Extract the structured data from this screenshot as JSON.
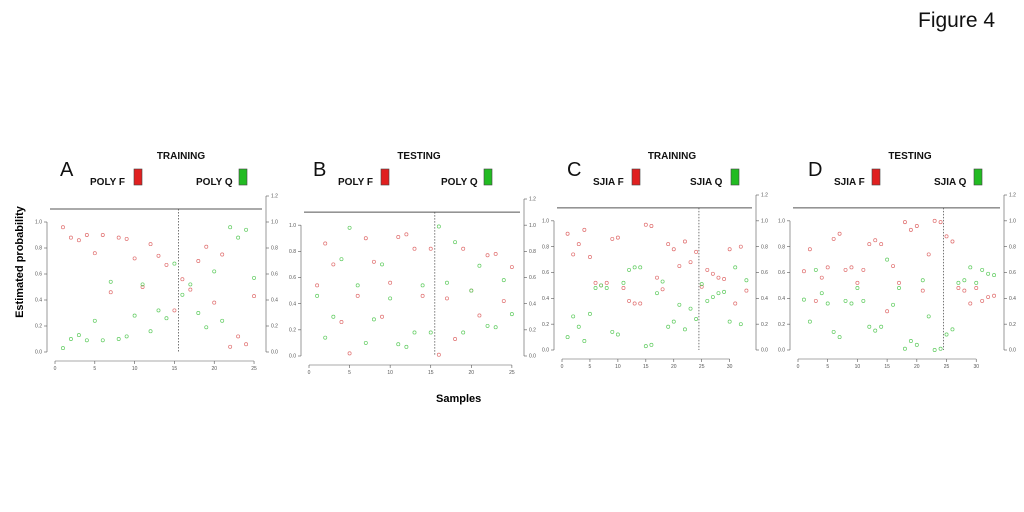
{
  "figure_title": "Figure 4",
  "y_label": "Estimated probability",
  "x_label": "Samples",
  "colors": {
    "group_f": "#e02020",
    "group_q": "#22bb22",
    "point_f": "#e07070",
    "point_q": "#60cc60",
    "axis": "#555555"
  },
  "chart_data": [
    {
      "type": "scatter",
      "panel": "A",
      "set_title": "TRAINING",
      "groups": [
        "POLY F",
        "POLY Q"
      ],
      "split_x": 15.5,
      "xlim": [
        0,
        26
      ],
      "ylim": [
        0,
        1.2
      ],
      "xticks": [
        0,
        5,
        10,
        15,
        20,
        25
      ],
      "yticks": [
        0.0,
        0.2,
        0.4,
        0.6,
        0.8,
        1.0,
        1.2
      ],
      "series": [
        {
          "group": "POLY F",
          "x": [
            1,
            2,
            3,
            4,
            5,
            6,
            7,
            8,
            9,
            10,
            11,
            12,
            13,
            14,
            15,
            16,
            17,
            18,
            19,
            20,
            21,
            22,
            23,
            24,
            25
          ],
          "y": [
            0.96,
            0.88,
            0.86,
            0.9,
            0.76,
            0.9,
            0.46,
            0.88,
            0.87,
            0.72,
            0.5,
            0.83,
            0.74,
            0.67,
            0.32,
            0.56,
            0.48,
            0.7,
            0.81,
            0.38,
            0.75,
            0.04,
            0.12,
            0.06,
            0.43
          ]
        },
        {
          "group": "POLY Q",
          "x": [
            1,
            2,
            3,
            4,
            5,
            6,
            7,
            8,
            9,
            10,
            11,
            12,
            13,
            14,
            15,
            16,
            17,
            18,
            19,
            20,
            21,
            22,
            23,
            24,
            25
          ],
          "y": [
            0.03,
            0.1,
            0.13,
            0.09,
            0.24,
            0.09,
            0.54,
            0.1,
            0.12,
            0.28,
            0.52,
            0.16,
            0.32,
            0.26,
            0.68,
            0.44,
            0.52,
            0.3,
            0.19,
            0.62,
            0.24,
            0.96,
            0.88,
            0.94,
            0.57
          ]
        }
      ]
    },
    {
      "type": "scatter",
      "panel": "B",
      "set_title": "TESTING",
      "groups": [
        "POLY F",
        "POLY Q"
      ],
      "split_x": 15.5,
      "xlim": [
        0,
        26
      ],
      "ylim": [
        0,
        1.2
      ],
      "xticks": [
        0,
        5,
        10,
        15,
        20,
        25
      ],
      "yticks": [
        0.0,
        0.2,
        0.4,
        0.6,
        0.8,
        1.0,
        1.2
      ],
      "series": [
        {
          "group": "POLY F",
          "x": [
            1,
            2,
            3,
            4,
            5,
            6,
            7,
            8,
            9,
            10,
            11,
            12,
            13,
            14,
            15,
            16,
            17,
            18,
            19,
            20,
            21,
            22,
            23,
            24,
            25
          ],
          "y": [
            0.54,
            0.86,
            0.7,
            0.26,
            0.02,
            0.46,
            0.9,
            0.72,
            0.3,
            0.56,
            0.91,
            0.93,
            0.82,
            0.46,
            0.82,
            0.01,
            0.44,
            0.13,
            0.82,
            0.5,
            0.31,
            0.77,
            0.78,
            0.42,
            0.68
          ]
        },
        {
          "group": "POLY Q",
          "x": [
            1,
            2,
            3,
            4,
            5,
            6,
            7,
            8,
            9,
            10,
            11,
            12,
            13,
            14,
            15,
            16,
            17,
            18,
            19,
            20,
            21,
            22,
            23,
            24,
            25
          ],
          "y": [
            0.46,
            0.14,
            0.3,
            0.74,
            0.98,
            0.54,
            0.1,
            0.28,
            0.7,
            0.44,
            0.09,
            0.07,
            0.18,
            0.54,
            0.18,
            0.99,
            0.56,
            0.87,
            0.18,
            0.5,
            0.69,
            0.23,
            0.22,
            0.58,
            0.32
          ]
        }
      ]
    },
    {
      "type": "scatter",
      "panel": "C",
      "set_title": "TRAINING",
      "groups": [
        "SJIA F",
        "SJIA Q"
      ],
      "split_x": 24.5,
      "xlim": [
        0,
        34
      ],
      "ylim": [
        0,
        1.2
      ],
      "xticks": [
        0,
        5,
        10,
        15,
        20,
        25,
        30
      ],
      "yticks": [
        0.0,
        0.2,
        0.4,
        0.6,
        0.8,
        1.0,
        1.2
      ],
      "series": [
        {
          "group": "SJIA F",
          "x": [
            1,
            2,
            3,
            4,
            5,
            6,
            7,
            8,
            9,
            10,
            11,
            12,
            13,
            14,
            15,
            16,
            17,
            18,
            19,
            20,
            21,
            22,
            23,
            24,
            25,
            26,
            27,
            28,
            29,
            30,
            31,
            32,
            33
          ],
          "y": [
            0.9,
            0.74,
            0.82,
            0.93,
            0.72,
            0.52,
            0.5,
            0.52,
            0.86,
            0.87,
            0.48,
            0.38,
            0.36,
            0.36,
            0.97,
            0.96,
            0.56,
            0.47,
            0.82,
            0.78,
            0.65,
            0.84,
            0.68,
            0.76,
            0.49,
            0.62,
            0.59,
            0.56,
            0.55,
            0.78,
            0.36,
            0.8,
            0.46
          ]
        },
        {
          "group": "SJIA Q",
          "x": [
            1,
            2,
            3,
            4,
            5,
            6,
            7,
            8,
            9,
            10,
            11,
            12,
            13,
            14,
            15,
            16,
            17,
            18,
            19,
            20,
            21,
            22,
            23,
            24,
            25,
            26,
            27,
            28,
            29,
            30,
            31,
            32,
            33
          ],
          "y": [
            0.1,
            0.26,
            0.18,
            0.07,
            0.28,
            0.48,
            0.5,
            0.48,
            0.14,
            0.12,
            0.52,
            0.62,
            0.64,
            0.64,
            0.03,
            0.04,
            0.44,
            0.53,
            0.18,
            0.22,
            0.35,
            0.16,
            0.32,
            0.24,
            0.51,
            0.38,
            0.41,
            0.44,
            0.45,
            0.22,
            0.64,
            0.2,
            0.54
          ]
        }
      ]
    },
    {
      "type": "scatter",
      "panel": "D",
      "set_title": "TESTING",
      "groups": [
        "SJIA F",
        "SJIA Q"
      ],
      "split_x": 24.5,
      "xlim": [
        0,
        34
      ],
      "ylim": [
        0,
        1.2
      ],
      "xticks": [
        0,
        5,
        10,
        15,
        20,
        25,
        30
      ],
      "yticks": [
        0.0,
        0.2,
        0.4,
        0.6,
        0.8,
        1.0,
        1.2
      ],
      "series": [
        {
          "group": "SJIA F",
          "x": [
            1,
            2,
            3,
            4,
            5,
            6,
            7,
            8,
            9,
            10,
            11,
            12,
            13,
            14,
            15,
            16,
            17,
            18,
            19,
            20,
            21,
            22,
            23,
            24,
            25,
            26,
            27,
            28,
            29,
            30,
            31,
            32,
            33
          ],
          "y": [
            0.61,
            0.78,
            0.38,
            0.56,
            0.64,
            0.86,
            0.9,
            0.62,
            0.64,
            0.52,
            0.62,
            0.82,
            0.85,
            0.82,
            0.3,
            0.65,
            0.52,
            0.99,
            0.93,
            0.96,
            0.46,
            0.74,
            1.0,
            0.99,
            0.88,
            0.84,
            0.48,
            0.46,
            0.36,
            0.48,
            0.38,
            0.41,
            0.42
          ]
        },
        {
          "group": "SJIA Q",
          "x": [
            1,
            2,
            3,
            4,
            5,
            6,
            7,
            8,
            9,
            10,
            11,
            12,
            13,
            14,
            15,
            16,
            17,
            18,
            19,
            20,
            21,
            22,
            23,
            24,
            25,
            26,
            27,
            28,
            29,
            30,
            31,
            32,
            33
          ],
          "y": [
            0.39,
            0.22,
            0.62,
            0.44,
            0.36,
            0.14,
            0.1,
            0.38,
            0.36,
            0.48,
            0.38,
            0.18,
            0.15,
            0.18,
            0.7,
            0.35,
            0.48,
            0.01,
            0.07,
            0.04,
            0.54,
            0.26,
            0.0,
            0.01,
            0.12,
            0.16,
            0.52,
            0.54,
            0.64,
            0.52,
            0.62,
            0.59,
            0.58
          ]
        }
      ]
    }
  ]
}
